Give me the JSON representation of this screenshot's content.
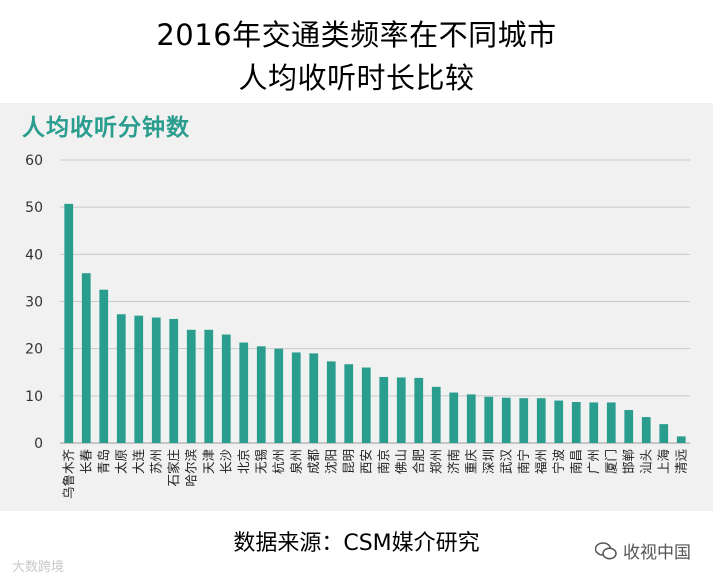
{
  "header": {
    "title_line1": "2016年交通类频率在不同城市",
    "title_line2": "人均收听时长比较"
  },
  "chart_data": {
    "type": "bar",
    "title": "2016年交通类频率在不同城市人均收听时长比较",
    "ylabel": "人均收听分钟数",
    "xlabel": "",
    "ylim": [
      0,
      60
    ],
    "yticks": [
      0,
      10,
      20,
      30,
      40,
      50,
      60
    ],
    "grid": true,
    "bar_color": "#2a9d8f",
    "categories": [
      "乌鲁木齐",
      "长春",
      "青岛",
      "太原",
      "大连",
      "苏州",
      "石家庄",
      "哈尔滨",
      "天津",
      "长沙",
      "北京",
      "无锡",
      "杭州",
      "泉州",
      "成都",
      "沈阳",
      "昆明",
      "西安",
      "南京",
      "佛山",
      "合肥",
      "郑州",
      "济南",
      "重庆",
      "深圳",
      "武汉",
      "南宁",
      "福州",
      "宁波",
      "南昌",
      "广州",
      "厦门",
      "邯郸",
      "汕头",
      "上海",
      "清远"
    ],
    "values": [
      50.7,
      36.0,
      32.5,
      27.3,
      27.0,
      26.6,
      26.3,
      24.0,
      24.0,
      23.0,
      21.3,
      20.5,
      20.0,
      19.2,
      19.0,
      17.3,
      16.7,
      16.0,
      14.0,
      13.9,
      13.8,
      11.9,
      10.7,
      10.3,
      9.8,
      9.6,
      9.5,
      9.5,
      9.0,
      8.7,
      8.6,
      8.6,
      7.0,
      5.5,
      4.0,
      1.4
    ]
  },
  "footer": {
    "source": "数据来源：CSM媒介研究",
    "watermark_left": "大数跨境",
    "watermark_right": "收视中国",
    "watermark_right_icon": "wechat-icon"
  }
}
